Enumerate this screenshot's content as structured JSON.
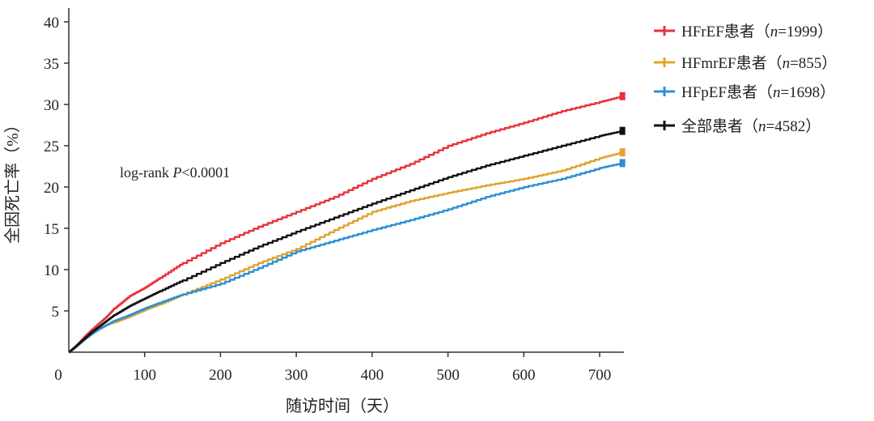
{
  "chart_data": {
    "type": "line",
    "xlabel": "随访时间（天）",
    "ylabel": "全因死亡率（%）",
    "xlim": [
      0,
      730
    ],
    "ylim": [
      0,
      42
    ],
    "xticks": [
      0,
      100,
      200,
      300,
      400,
      500,
      600,
      700
    ],
    "yticks": [
      5,
      10,
      15,
      20,
      25,
      30,
      35,
      40
    ],
    "grid": false,
    "legend_position": "top-right",
    "annotation": {
      "prefix": "log-rank ",
      "italic": "P",
      "suffix": "<0.0001"
    },
    "series": [
      {
        "name": "HFrEF患者（n=1999）",
        "name_parts": [
          "HFrEF患者（",
          "n",
          "=1999）"
        ],
        "color": "#e8313a",
        "x": [
          0,
          10,
          20,
          30,
          40,
          50,
          60,
          80,
          100,
          120,
          150,
          200,
          250,
          300,
          350,
          400,
          450,
          500,
          550,
          600,
          650,
          700,
          730
        ],
        "y": [
          0,
          0.8,
          1.8,
          2.7,
          3.5,
          4.3,
          5.3,
          6.8,
          7.8,
          9,
          10.8,
          13.2,
          15.2,
          17,
          18.8,
          21,
          22.8,
          25,
          26.5,
          27.8,
          29.2,
          30.3,
          31
        ]
      },
      {
        "name": "HFmrEF患者（n=855）",
        "name_parts": [
          "HFmrEF患者（",
          "n",
          "=855）"
        ],
        "color": "#e0a32c",
        "x": [
          0,
          10,
          20,
          30,
          40,
          50,
          60,
          80,
          100,
          120,
          150,
          200,
          250,
          300,
          350,
          400,
          450,
          500,
          550,
          600,
          650,
          700,
          730
        ],
        "y": [
          0,
          0.7,
          1.5,
          2.2,
          2.8,
          3.3,
          3.6,
          4.3,
          5.1,
          5.8,
          7,
          8.8,
          10.8,
          12.5,
          14.8,
          17,
          18.3,
          19.3,
          20.2,
          21,
          22,
          23.5,
          24.2
        ]
      },
      {
        "name": "HFpEF患者（n=1698）",
        "name_parts": [
          "HFpEF患者（",
          "n",
          "=1698）"
        ],
        "color": "#2b8fd6",
        "x": [
          0,
          10,
          20,
          30,
          40,
          50,
          60,
          80,
          100,
          120,
          150,
          200,
          250,
          300,
          350,
          400,
          450,
          500,
          550,
          600,
          650,
          700,
          730
        ],
        "y": [
          0,
          0.7,
          1.5,
          2.2,
          2.8,
          3.3,
          3.8,
          4.5,
          5.3,
          6,
          7,
          8.3,
          10.2,
          12.2,
          13.5,
          14.8,
          16,
          17.3,
          18.8,
          20,
          21,
          22.3,
          22.9
        ]
      },
      {
        "name": "全部患者（n=4582）",
        "name_parts": [
          "全部患者（",
          "n",
          "=4582）"
        ],
        "color": "#111111",
        "x": [
          0,
          10,
          20,
          30,
          40,
          50,
          60,
          80,
          100,
          120,
          150,
          200,
          250,
          300,
          350,
          400,
          450,
          500,
          550,
          600,
          650,
          700,
          730
        ],
        "y": [
          0,
          0.8,
          1.6,
          2.4,
          3.1,
          3.8,
          4.5,
          5.6,
          6.5,
          7.4,
          8.7,
          10.8,
          12.8,
          14.6,
          16.3,
          18,
          19.6,
          21.2,
          22.6,
          23.8,
          25,
          26.2,
          26.8
        ]
      }
    ]
  }
}
